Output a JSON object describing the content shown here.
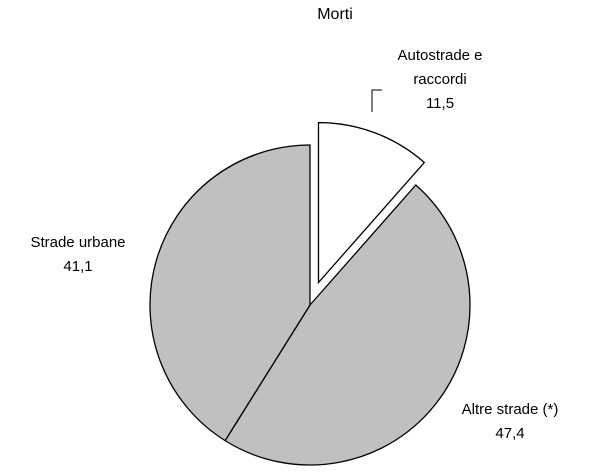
{
  "chart_data": {
    "type": "pie",
    "title": "Morti",
    "categories": [
      "Autostrade e raccordi",
      "Altre strade (*)",
      "Strade urbane"
    ],
    "values": [
      11.5,
      47.4,
      41.1
    ],
    "value_labels": [
      "11,5",
      "47,4",
      "41,1"
    ],
    "colors": [
      "#ffffff",
      "#c0c0c0",
      "#c0c0c0"
    ],
    "explode": [
      0.15,
      0,
      0
    ]
  }
}
